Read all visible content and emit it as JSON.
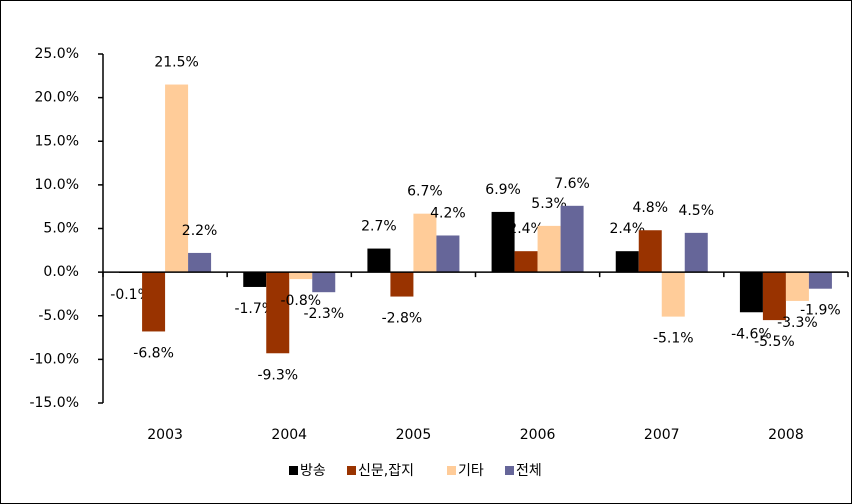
{
  "chart_data": {
    "type": "bar",
    "categories": [
      "2003",
      "2004",
      "2005",
      "2006",
      "2007",
      "2008"
    ],
    "series": [
      {
        "name": "방송",
        "color": "#000000",
        "values": [
          -0.1,
          -1.7,
          2.7,
          6.9,
          2.4,
          -4.6
        ],
        "value_labels": [
          "-0.1%",
          "-1.7%",
          "2.7%",
          "6.9%",
          "2.4%",
          "-4.6%"
        ]
      },
      {
        "name": "신문,잡지",
        "color": "#993300",
        "values": [
          -6.8,
          -9.3,
          -2.8,
          2.4,
          4.8,
          -5.5
        ],
        "value_labels": [
          "-6.8%",
          "-9.3%",
          "-2.8%",
          "2.4%",
          "4.8%",
          "-5.5%"
        ]
      },
      {
        "name": "기타",
        "color": "#ffcc99",
        "values": [
          21.5,
          -0.8,
          6.7,
          5.3,
          -5.1,
          -3.3
        ],
        "value_labels": [
          "21.5%",
          "-0.8%",
          "6.7%",
          "5.3%",
          "-5.1%",
          "-3.3%"
        ]
      },
      {
        "name": "전체",
        "color": "#666699",
        "values": [
          2.2,
          -2.3,
          4.2,
          7.6,
          4.5,
          -1.9
        ],
        "value_labels": [
          "2.2%",
          "-2.3%",
          "4.2%",
          "7.6%",
          "4.5%",
          "-1.9%"
        ]
      }
    ],
    "ylim": [
      -15,
      25
    ],
    "yticks": [
      {
        "value": -15,
        "label": "-15.0%"
      },
      {
        "value": -10,
        "label": "-10.0%"
      },
      {
        "value": -5,
        "label": "-5.0%"
      },
      {
        "value": 0,
        "label": "0.0%"
      },
      {
        "value": 5,
        "label": "5.0%"
      },
      {
        "value": 10,
        "label": "10.0%"
      },
      {
        "value": 15,
        "label": "15.0%"
      },
      {
        "value": 20,
        "label": "20.0%"
      },
      {
        "value": 25,
        "label": "25.0%"
      }
    ],
    "grid": false,
    "legend": "bottom"
  }
}
